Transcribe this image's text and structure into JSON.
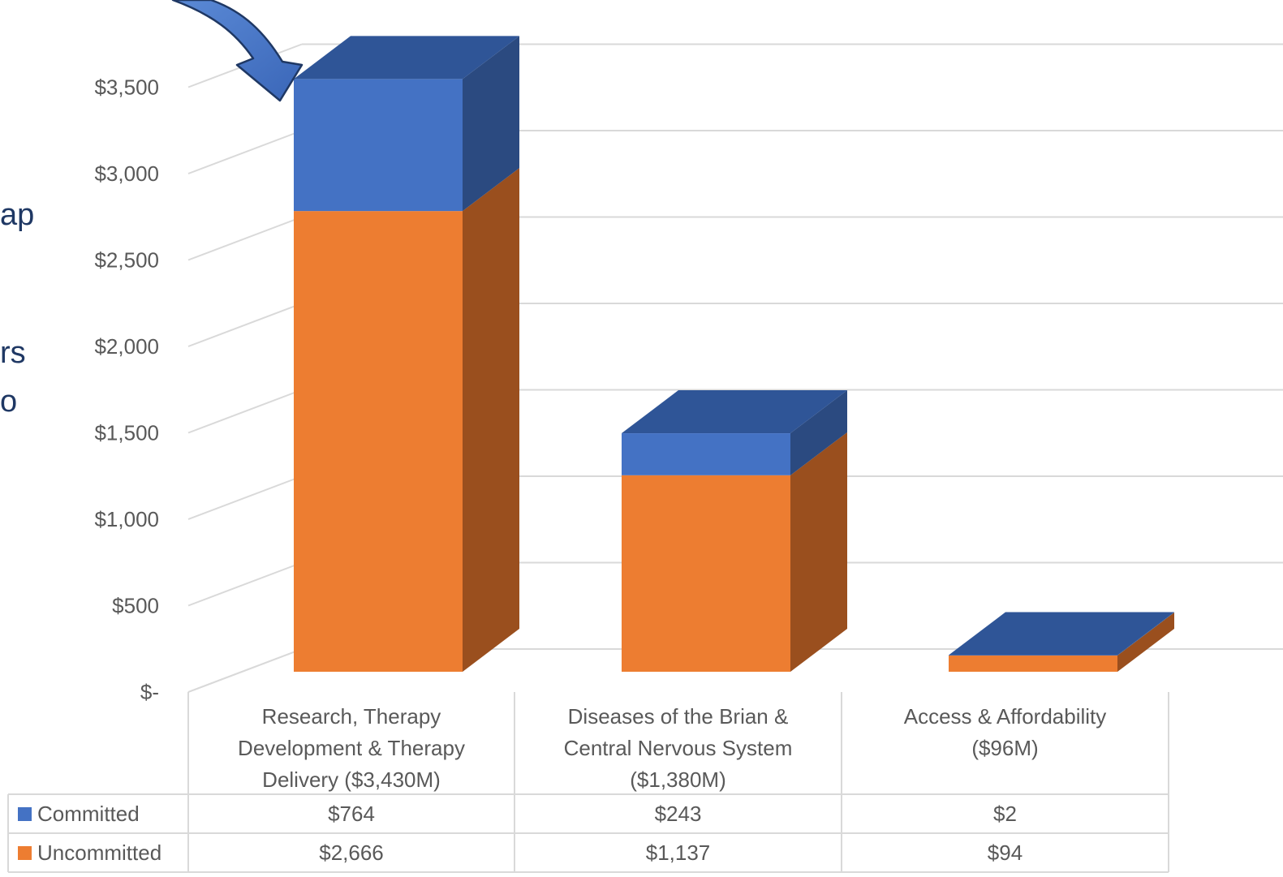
{
  "side_text_fragments": [
    "ap",
    "rs",
    "o"
  ],
  "chart_data": {
    "type": "bar",
    "stacked": true,
    "three_d": true,
    "categories": [
      [
        "Research, Therapy",
        "Development & Therapy",
        "Delivery ($3,430M)"
      ],
      [
        "Diseases of the Brian &",
        "Central Nervous System",
        "($1,380M)"
      ],
      [
        "Access & Affordability",
        "($96M)"
      ]
    ],
    "series": [
      {
        "name": "Uncommitted",
        "values": [
          2666,
          1137,
          94
        ],
        "labels": [
          "$2,666",
          "$1,137",
          "$94"
        ],
        "color": "#ED7D31",
        "side_color": "#9A4F1E"
      },
      {
        "name": "Committed",
        "values": [
          764,
          243,
          2
        ],
        "labels": [
          "$764",
          "$243",
          "$2"
        ],
        "color": "#4472C4",
        "top_color": "#2F5597",
        "side_color": "#2B4A80"
      }
    ],
    "y_ticks": [
      "$-",
      "$500",
      "$1,000",
      "$1,500",
      "$2,000",
      "$2,500",
      "$3,000",
      "$3,500"
    ],
    "y_tick_values": [
      0,
      500,
      1000,
      1500,
      2000,
      2500,
      3000,
      3500
    ],
    "ylim": [
      0,
      3500
    ],
    "grid": true,
    "legend": "data-table",
    "annotation": "arrow pointing to top of first bar"
  }
}
